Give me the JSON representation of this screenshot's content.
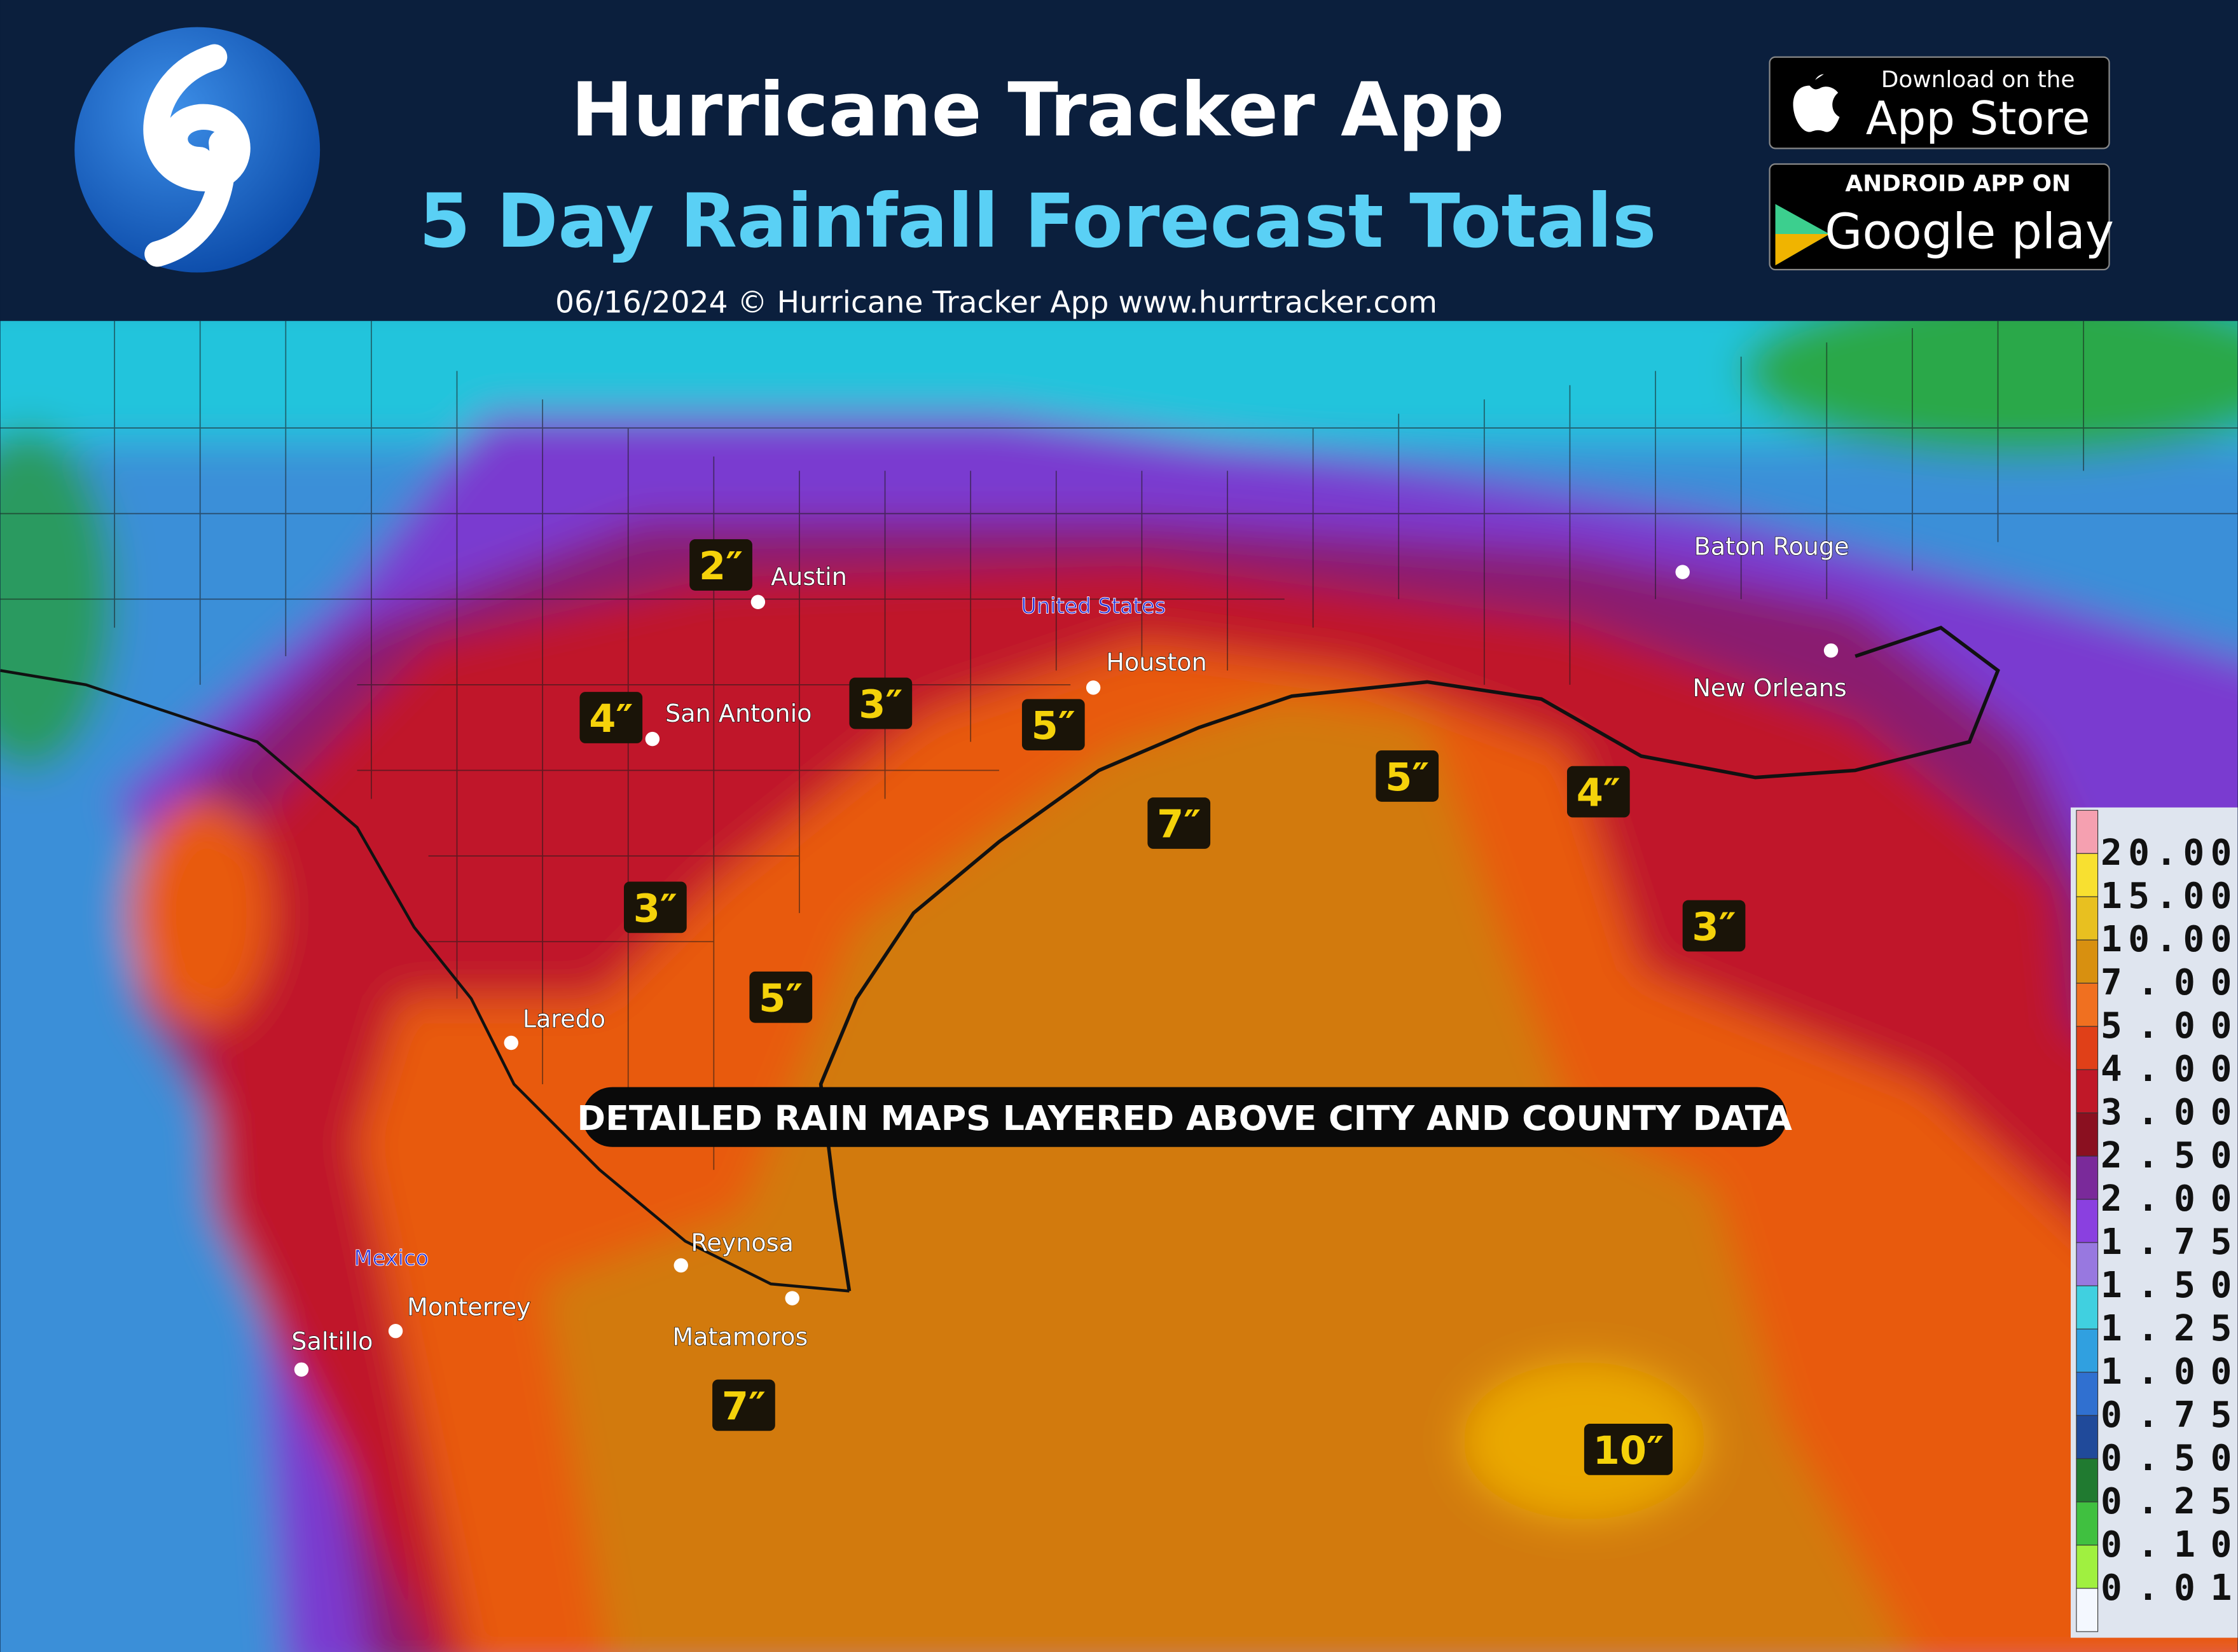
{
  "header": {
    "title": "Hurricane Tracker App",
    "subtitle": "5 Day Rainfall Forecast Totals",
    "credit": "06/16/2024 © Hurricane Tracker App www.hurrtracker.com"
  },
  "badges": {
    "apple_top": "Download on the",
    "apple_main": "App Store",
    "google_top": "ANDROID APP ON",
    "google_main": "Google play"
  },
  "map": {
    "countries": [
      "United States",
      "Mexico"
    ],
    "cities": [
      "Austin",
      "San Antonio",
      "Houston",
      "Baton Rouge",
      "New Orleans",
      "Laredo",
      "Reynosa",
      "Matamoros",
      "Monterrey",
      "Saltillo"
    ],
    "rain_labels": [
      "2″",
      "4″",
      "3″",
      "5″",
      "7″",
      "5″",
      "4″",
      "3″",
      "3″",
      "5″",
      "7″",
      "10″"
    ],
    "banner": "DETAILED RAIN MAPS LAYERED ABOVE CITY AND COUNTY DATA"
  },
  "legend": [
    "20.00",
    "15.00",
    "10.00",
    "7.00",
    "5.00",
    "4.00",
    "3.00",
    "2.50",
    "2.00",
    "1.75",
    "1.50",
    "1.25",
    "1.00",
    "0.75",
    "0.50",
    "0.25",
    "0.10",
    "0.01"
  ]
}
